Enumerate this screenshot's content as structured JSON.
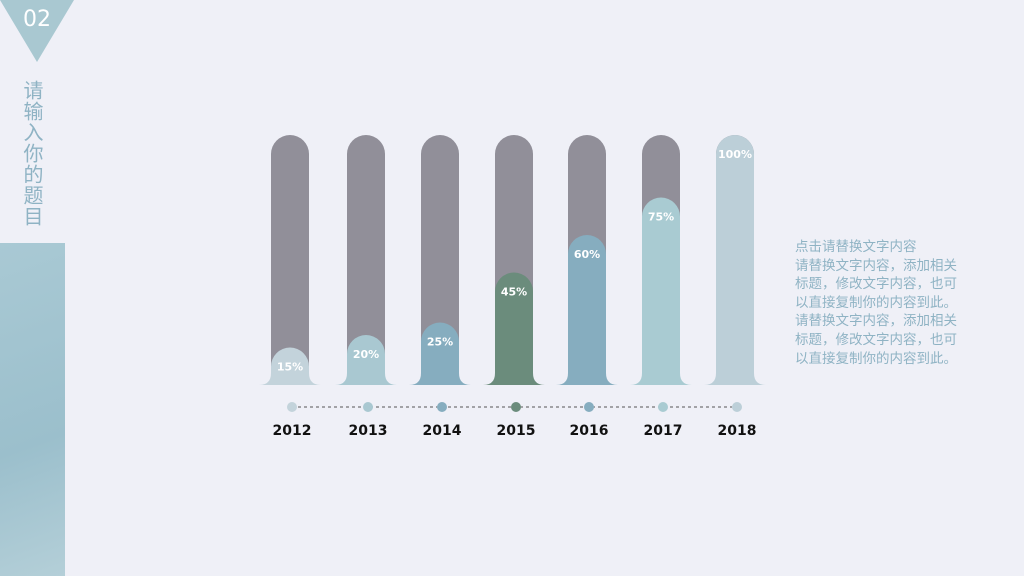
{
  "badge": "02",
  "slide_title": "请输入你的题目",
  "text_block": {
    "heading": "点击请替换文字内容",
    "lines": [
      "请替换文字内容，添加相关",
      "标题，修改文字内容，也可",
      "以直接复制你的内容到此。",
      "请替换文字内容，添加相关",
      "标题，修改文字内容，也可",
      "以直接复制你的内容到此。"
    ]
  },
  "chart_data": {
    "type": "bar",
    "categories": [
      "2012",
      "2013",
      "2014",
      "2015",
      "2016",
      "2017",
      "2018"
    ],
    "values": [
      15,
      20,
      25,
      45,
      60,
      75,
      100
    ],
    "value_labels": [
      "15%",
      "20%",
      "25%",
      "45%",
      "60%",
      "75%",
      "100%"
    ],
    "colors": [
      "#c3d3db",
      "#a9c8d1",
      "#86adbf",
      "#6b8c7c",
      "#86adbf",
      "#a9cbd2",
      "#bccfd8"
    ],
    "track_color": "#918f99",
    "ylim": [
      0,
      100
    ]
  }
}
